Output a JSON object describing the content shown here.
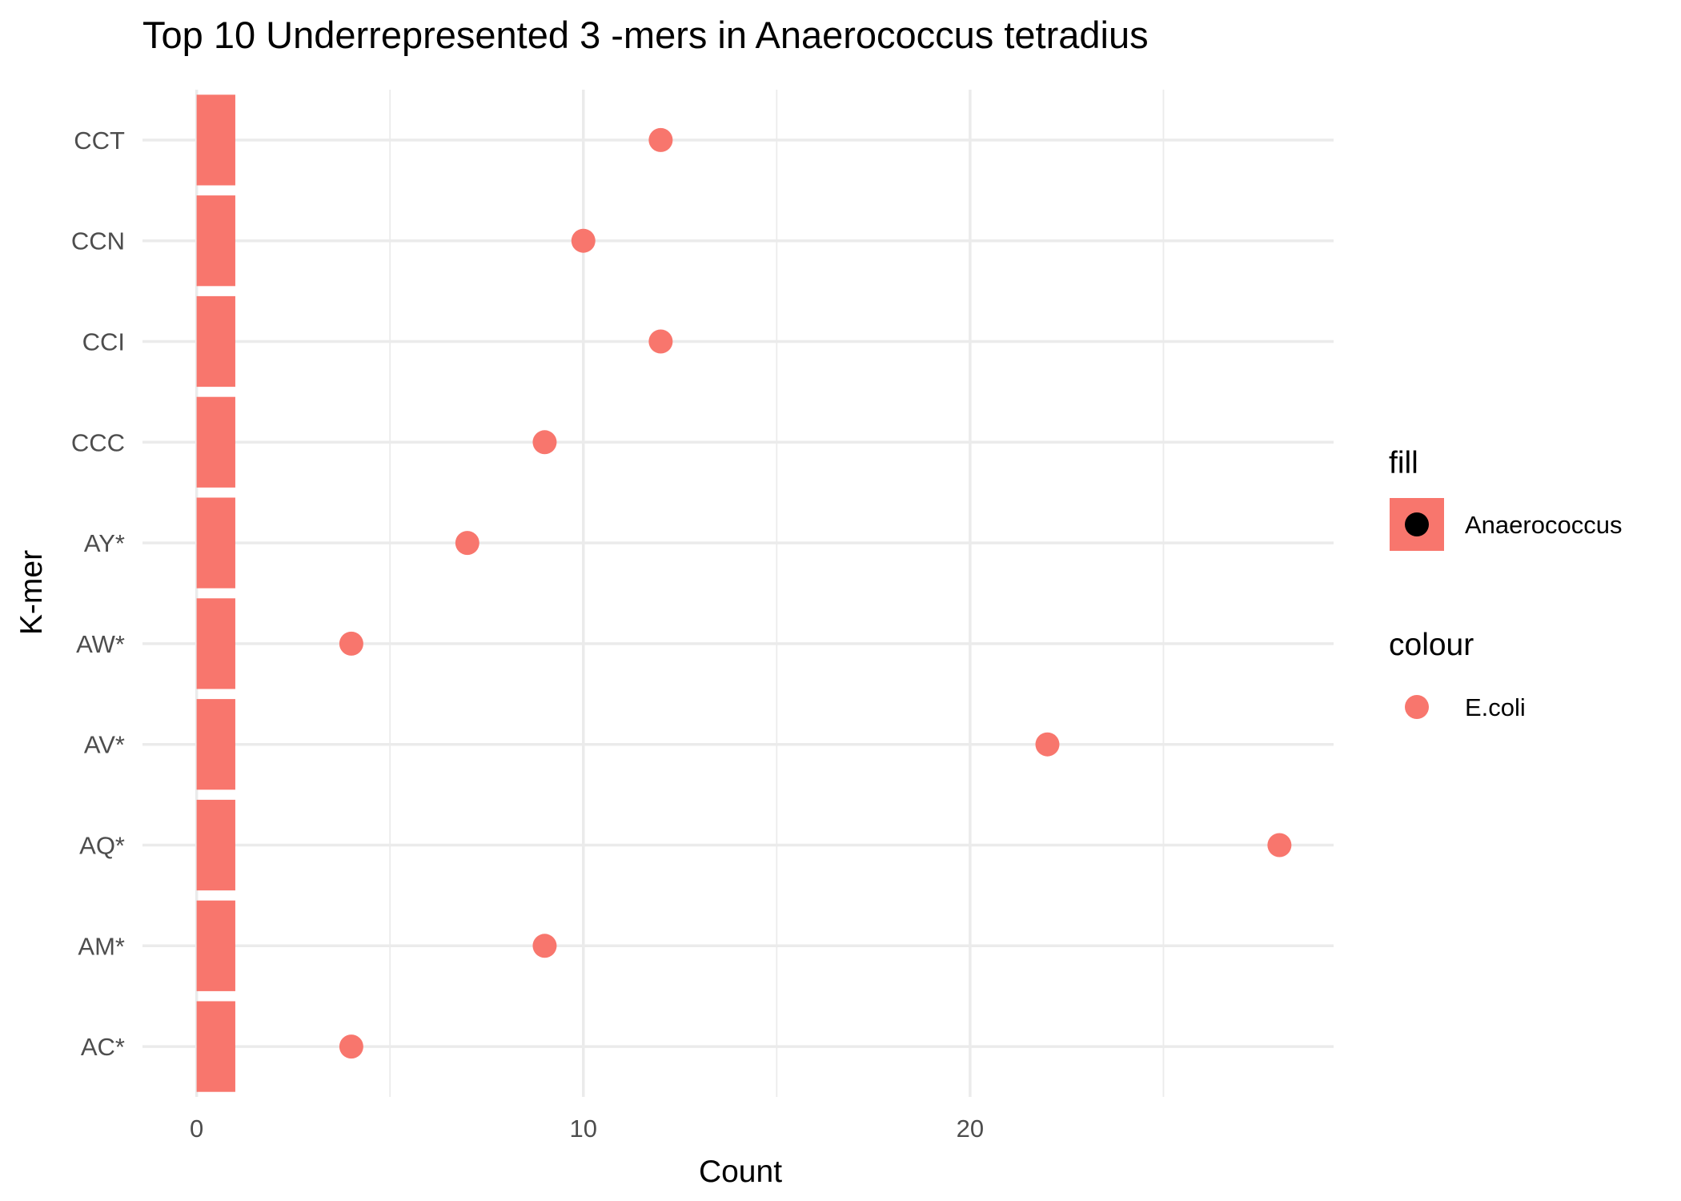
{
  "chart_data": {
    "type": "bar",
    "title": "Top 10 Underrepresented 3 -mers in Anaerococcus tetradius",
    "xlabel": "Count",
    "ylabel": "K-mer",
    "orientation": "horizontal",
    "categories": [
      "CCT",
      "CCN",
      "CCI",
      "CCC",
      "AY*",
      "AW*",
      "AV*",
      "AQ*",
      "AM*",
      "AC*"
    ],
    "series": [
      {
        "name": "Anaerococcus",
        "mark": "bar",
        "aesthetic": "fill",
        "values": [
          1,
          1,
          1,
          1,
          1,
          1,
          1,
          1,
          1,
          1
        ]
      },
      {
        "name": "E.coli",
        "mark": "point",
        "aesthetic": "colour",
        "values": [
          12,
          10,
          12,
          9,
          7,
          4,
          22,
          28,
          9,
          4
        ]
      }
    ],
    "xlim": [
      -1.4,
      29.4
    ],
    "xticks": [
      0,
      10,
      20
    ],
    "grid": true,
    "legend_position": "right",
    "legend": [
      {
        "title": "fill",
        "label": "Anaerococcus"
      },
      {
        "title": "colour",
        "label": "E.coli"
      }
    ],
    "colors": {
      "bar": "#f8766d",
      "point": "#f8766d",
      "legend_dot": "#000000",
      "grid": "#ebebeb"
    }
  }
}
